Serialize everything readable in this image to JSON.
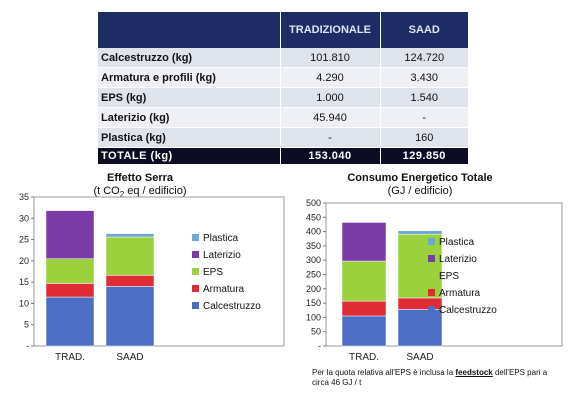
{
  "table": {
    "header": [
      "",
      "TRADIZIONALE",
      "SAAD"
    ],
    "rows": [
      {
        "label": "Calcestruzzo (kg)",
        "trad": "101.810",
        "saad": "124.720"
      },
      {
        "label": "Armatura e profili (kg)",
        "trad": "4.290",
        "saad": "3.430"
      },
      {
        "label": "EPS (kg)",
        "trad": "1.000",
        "saad": "1.540"
      },
      {
        "label": "Laterizio (kg)",
        "trad": "45.940",
        "saad": "-"
      },
      {
        "label": "Plastica (kg)",
        "trad": "-",
        "saad": "160"
      }
    ],
    "total": {
      "label": "TOTALE (kg)",
      "trad": "153.040",
      "saad": "129.850"
    }
  },
  "colors": {
    "Calcestruzzo": "#4a6fc4",
    "Armatura": "#e02b35",
    "EPS": "#9bd13d",
    "Laterizio": "#7a3aa8",
    "Plastica": "#6aa8d8"
  },
  "chart_data": [
    {
      "type": "bar",
      "stacked": true,
      "title": "Effetto Serra",
      "subtitle_pre": "(t CO",
      "subtitle_sub": "2",
      "subtitle_post": " eq / edificio)",
      "categories": [
        "TRAD.",
        "SAAD"
      ],
      "ylim": [
        0,
        35
      ],
      "yticks": [
        0,
        5,
        10,
        15,
        20,
        25,
        30,
        35
      ],
      "ytick_labels": [
        "-",
        "5",
        "10",
        "15",
        "20",
        "25",
        "30",
        "35"
      ],
      "grid": false,
      "legend": "right",
      "series": [
        {
          "name": "Calcestruzzo",
          "values": [
            11.5,
            14.0
          ]
        },
        {
          "name": "Armatura",
          "values": [
            3.2,
            2.6
          ]
        },
        {
          "name": "EPS",
          "values": [
            5.8,
            9.0
          ]
        },
        {
          "name": "Laterizio",
          "values": [
            11.3,
            0
          ]
        },
        {
          "name": "Plastica",
          "values": [
            0,
            0.8
          ]
        }
      ]
    },
    {
      "type": "bar",
      "stacked": true,
      "title": "Consumo Energetico Totale",
      "subtitle_pre": "(GJ / edificio)",
      "subtitle_sub": "",
      "subtitle_post": "",
      "categories": [
        "TRAD.",
        "SAAD"
      ],
      "ylim": [
        0,
        500
      ],
      "yticks": [
        0,
        50,
        100,
        150,
        200,
        250,
        300,
        350,
        400,
        450,
        500
      ],
      "ytick_labels": [
        "-",
        "50",
        "100",
        "150",
        "200",
        "250",
        "300",
        "350",
        "400",
        "450",
        "500"
      ],
      "grid": false,
      "legend": "right",
      "series": [
        {
          "name": "Calcestruzzo",
          "values": [
            105,
            128
          ]
        },
        {
          "name": "Armatura",
          "values": [
            52,
            40
          ]
        },
        {
          "name": "EPS",
          "values": [
            140,
            223
          ]
        },
        {
          "name": "Laterizio",
          "values": [
            135,
            0
          ]
        },
        {
          "name": "Plastica",
          "values": [
            0,
            12
          ]
        }
      ]
    }
  ],
  "note": {
    "pre": "Per la quota relativa all'EPS è inclusa la ",
    "strong": "feedstock",
    "post": " dell'EPS pari a circa 46 GJ / t"
  }
}
